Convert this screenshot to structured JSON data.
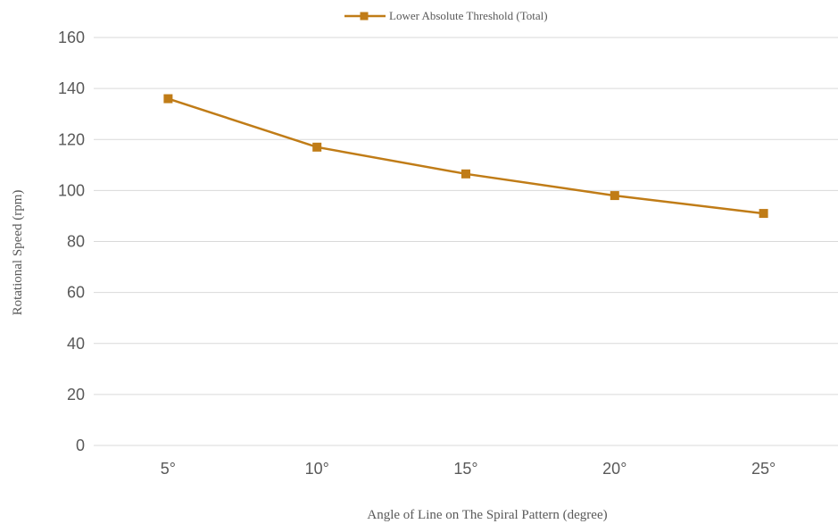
{
  "chart_data": {
    "type": "line",
    "categories": [
      "5°",
      "10°",
      "15°",
      "20°",
      "25°"
    ],
    "series": [
      {
        "name": "Lower Absolute Threshold (Total)",
        "values": [
          136,
          117,
          106.5,
          98,
          91
        ]
      }
    ],
    "xlabel": "Angle of Line on The Spiral Pattern (degree)",
    "ylabel": "Rotational Speed (rpm)",
    "ylim": [
      0,
      160
    ],
    "yticks": [
      0,
      20,
      40,
      60,
      80,
      100,
      120,
      140,
      160
    ],
    "grid": true,
    "legend_position": "top",
    "series_color": "#c07c17"
  }
}
